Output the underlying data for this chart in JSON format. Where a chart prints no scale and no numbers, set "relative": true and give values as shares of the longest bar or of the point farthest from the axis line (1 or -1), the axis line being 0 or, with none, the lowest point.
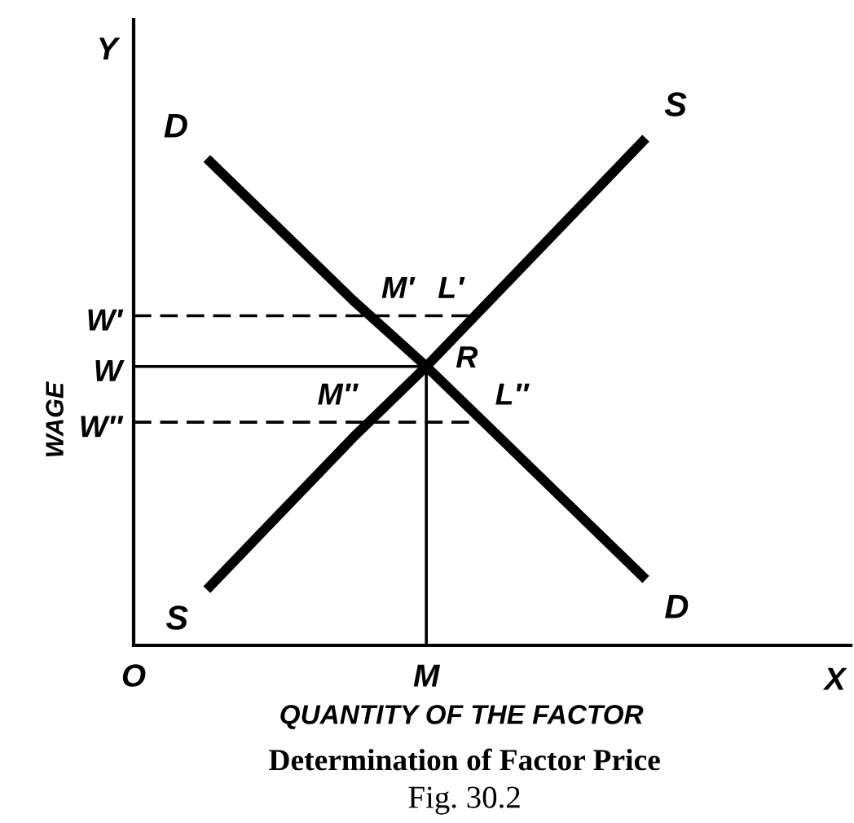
{
  "chart_data": {
    "type": "line",
    "relative": true,
    "title": "Determination of Factor Price",
    "xlabel": "QUANTITY OF THE FACTOR",
    "ylabel": "WAGE",
    "categories": [
      "O",
      null,
      null,
      null,
      "M",
      null,
      null,
      null
    ],
    "series": [
      {
        "name": "D",
        "color": "#000000",
        "values": [
          null,
          0.96,
          0.82,
          0.68,
          0.55,
          0.41,
          0.27,
          0.13
        ]
      },
      {
        "name": "S",
        "color": "#000000",
        "values": [
          null,
          0.11,
          0.26,
          0.41,
          0.55,
          0.7,
          0.85,
          1.0
        ]
      },
      {
        "color": "#000000",
        "x": [
          "M",
          "M"
        ],
        "values": [
          0,
          0.55
        ]
      }
    ],
    "ref_lines": [
      {
        "axis": "y",
        "value": 0.65,
        "label": "W′",
        "line_style": "dashed"
      },
      {
        "axis": "y",
        "value": 0.55,
        "label": "W"
      },
      {
        "axis": "y",
        "value": 0.44,
        "label": "W″",
        "line_style": "dashed"
      }
    ],
    "annotations": [
      "Y",
      "X",
      {
        "text": "M′",
        "y": 0.65
      },
      {
        "text": "L′",
        "y": 0.65
      },
      {
        "text": "R",
        "x": "M",
        "y": 0.55
      },
      {
        "text": "M″",
        "y": 0.44
      },
      "L″",
      "Fig. 30.2"
    ]
  }
}
